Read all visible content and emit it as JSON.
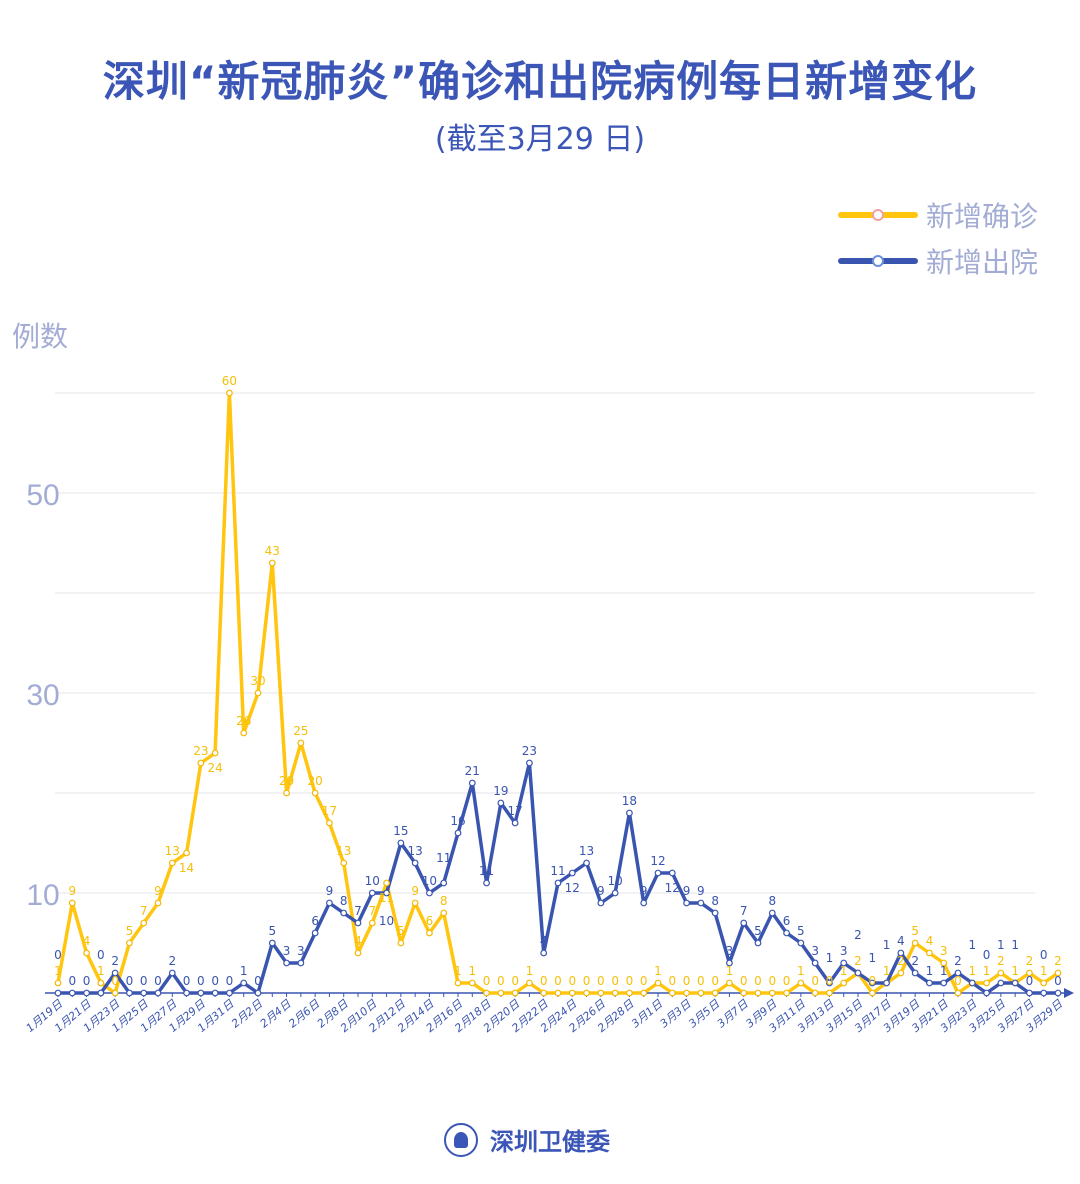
{
  "header": {
    "title": "深圳“新冠肺炎”确诊和出院病例每日新增变化",
    "subtitle": "(截至3月29 日)"
  },
  "footer": {
    "org": "深圳卫健委"
  },
  "chart_data": {
    "type": "line",
    "title": "深圳“新冠肺炎”确诊和出院病例每日新增变化",
    "subtitle": "(截至3月29 日)",
    "ylabel": "例数",
    "xlabel": "",
    "ylim": [
      0,
      60
    ],
    "y_ticks": [
      10,
      30,
      50
    ],
    "grid": true,
    "legend_position": "top-right",
    "categories": [
      "1月19日",
      "1月20日",
      "1月21日",
      "1月22日",
      "1月23日",
      "1月24日",
      "1月25日",
      "1月26日",
      "1月27日",
      "1月28日",
      "1月29日",
      "1月30日",
      "1月31日",
      "2月1日",
      "2月2日",
      "2月3日",
      "2月4日",
      "2月5日",
      "2月6日",
      "2月7日",
      "2月8日",
      "2月9日",
      "2月10日",
      "2月11日",
      "2月12日",
      "2月13日",
      "2月14日",
      "2月15日",
      "2月16日",
      "2月17日",
      "2月18日",
      "2月19日",
      "2月20日",
      "2月21日",
      "2月22日",
      "2月23日",
      "2月24日",
      "2月25日",
      "2月26日",
      "2月27日",
      "2月28日",
      "2月29日",
      "3月1日",
      "3月2日",
      "3月3日",
      "3月4日",
      "3月5日",
      "3月6日",
      "3月7日",
      "3月8日",
      "3月9日",
      "3月10日",
      "3月11日",
      "3月12日",
      "3月13日",
      "3月14日",
      "3月15日",
      "3月16日",
      "3月17日",
      "3月18日",
      "3月19日",
      "3月20日",
      "3月21日",
      "3月22日",
      "3月23日",
      "3月24日",
      "3月25日",
      "3月26日",
      "3月27日",
      "3月28日",
      "3月29日"
    ],
    "x_tick_labels": [
      "1月19日",
      "1月21日",
      "1月23日",
      "1月25日",
      "1月27日",
      "1月29日",
      "1月31日",
      "2月2日",
      "2月4日",
      "2月6日",
      "2月8日",
      "2月10日",
      "2月12日",
      "2月14日",
      "2月16日",
      "2月18日",
      "2月20日",
      "2月22日",
      "2月24日",
      "2月26日",
      "2月28日",
      "3月1日",
      "3月3日",
      "3月5日",
      "3月7日",
      "3月9日",
      "3月11日",
      "3月13日",
      "3月15日",
      "3月17日",
      "3月19日",
      "3月21日",
      "3月23日",
      "3月25日",
      "3月27日",
      "3月29日"
    ],
    "series": [
      {
        "name": "新增确诊",
        "color": "#FFC50F",
        "values": [
          1,
          9,
          4,
          1,
          0,
          5,
          7,
          9,
          13,
          14,
          23,
          24,
          60,
          26,
          30,
          43,
          20,
          25,
          20,
          17,
          13,
          4,
          7,
          11,
          5,
          9,
          6,
          8,
          1,
          1,
          0,
          0,
          0,
          1,
          0,
          0,
          0,
          0,
          0,
          0,
          0,
          0,
          1,
          0,
          0,
          0,
          0,
          1,
          0,
          0,
          0,
          0,
          1,
          0,
          0,
          1,
          2,
          0,
          1,
          2,
          5,
          4,
          3,
          0,
          1,
          1,
          2,
          1,
          2,
          1,
          2
        ]
      },
      {
        "name": "新增出院",
        "color": "#3A55B0",
        "values": [
          0,
          0,
          0,
          0,
          2,
          0,
          0,
          0,
          2,
          0,
          0,
          0,
          0,
          1,
          0,
          5,
          3,
          3,
          6,
          9,
          8,
          7,
          10,
          10,
          15,
          13,
          10,
          11,
          16,
          21,
          11,
          19,
          17,
          23,
          4,
          11,
          12,
          13,
          9,
          10,
          18,
          9,
          12,
          12,
          9,
          9,
          8,
          3,
          7,
          5,
          8,
          6,
          5,
          3,
          1,
          3,
          2,
          1,
          1,
          4,
          2,
          1,
          1,
          2,
          1,
          0,
          1,
          1,
          0,
          0,
          0
        ]
      }
    ]
  }
}
